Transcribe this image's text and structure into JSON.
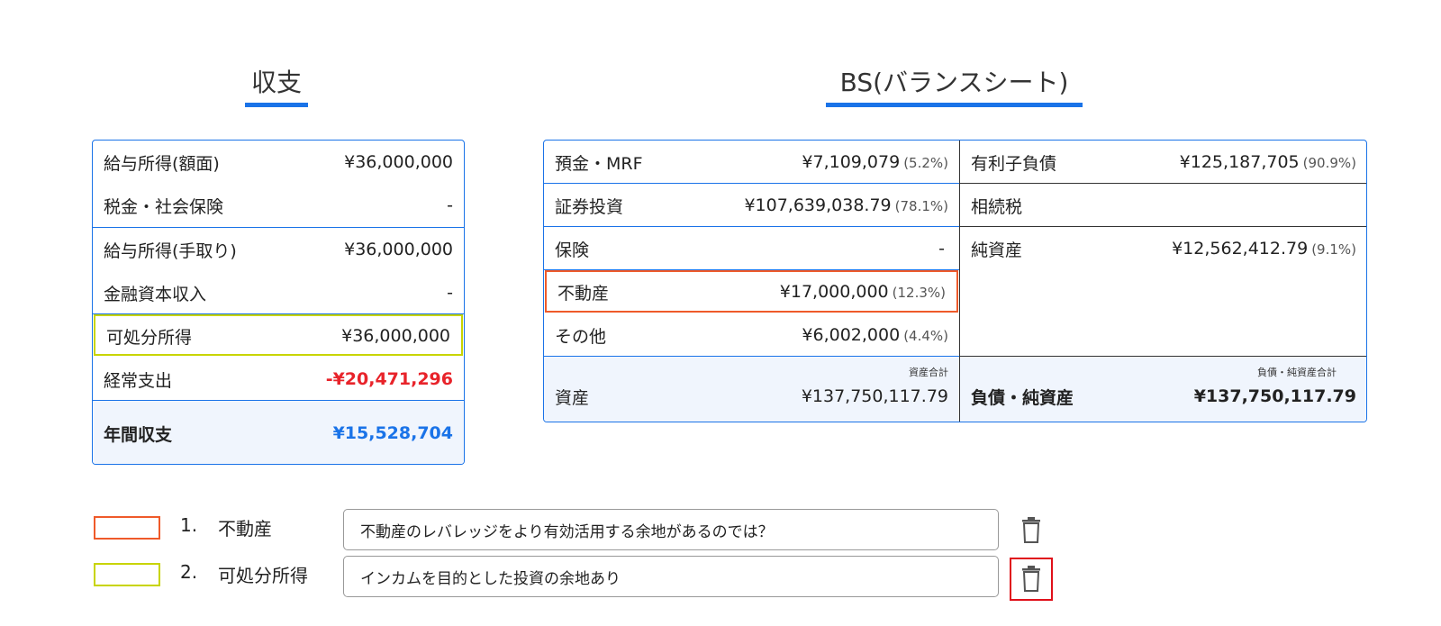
{
  "headings": {
    "income": "収支",
    "bs": "BS(バランスシート)"
  },
  "income": {
    "rows": [
      {
        "label": "給与所得(額面)",
        "value": "¥36,000,000"
      },
      {
        "label": "税金・社会保険",
        "value": "-"
      },
      {
        "label": "給与所得(手取り)",
        "value": "¥36,000,000"
      },
      {
        "label": "金融資本収入",
        "value": "-"
      },
      {
        "label": "可処分所得",
        "value": "¥36,000,000"
      },
      {
        "label": "経常支出",
        "value": "-¥20,471,296"
      }
    ],
    "total": {
      "label": "年間収支",
      "value": "¥15,528,704"
    }
  },
  "bs": {
    "assets": [
      {
        "label": "預金・MRF",
        "value": "¥7,109,079",
        "pct": "(5.2%)"
      },
      {
        "label": "証券投資",
        "value": "¥107,639,038.79",
        "pct": "(78.1%)"
      },
      {
        "label": "保険",
        "value": "-",
        "pct": ""
      },
      {
        "label": "不動産",
        "value": "¥17,000,000",
        "pct": "(12.3%)"
      },
      {
        "label": "その他",
        "value": "¥6,002,000",
        "pct": "(4.4%)"
      }
    ],
    "liabilities": [
      {
        "label": "有利子負債",
        "value": "¥125,187,705",
        "pct": "(90.9%)"
      },
      {
        "label": "相続税",
        "value": "",
        "pct": ""
      },
      {
        "label": "純資産",
        "value": "¥12,562,412.79",
        "pct": "(9.1%)"
      }
    ],
    "assets_total": {
      "caption": "資産合計",
      "label": "資産",
      "value": "¥137,750,117.79"
    },
    "liab_total": {
      "caption": "負債・純資産合計",
      "label": "負債・純資産",
      "value": "¥137,750,117.79"
    }
  },
  "notes": [
    {
      "num": "1.",
      "label": "不動産",
      "color": "#ef5a2a",
      "text": "不動産のレバレッジをより有効活用する余地があるのでは？",
      "icon": "trash-icon"
    },
    {
      "num": "2.",
      "label": "可処分所得",
      "color": "#c8d400",
      "text": "インカムを目的とした投資の余地あり",
      "icon": "trash-icon"
    }
  ]
}
